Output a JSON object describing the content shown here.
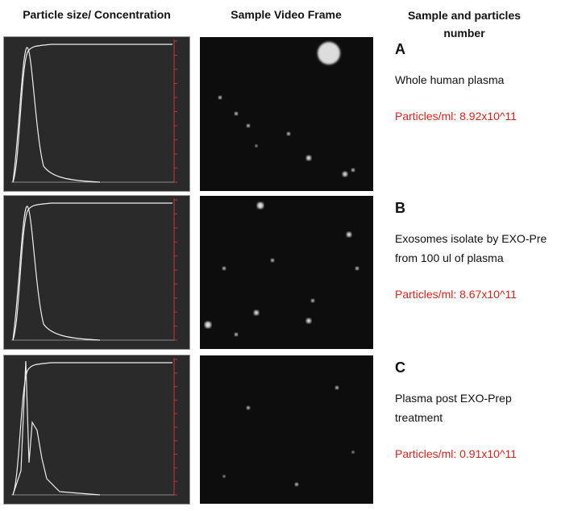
{
  "header": {
    "col1": "Particle size/ Concentration",
    "col2": "Sample Video Frame",
    "col3": [
      "Sample and particles",
      "number"
    ]
  },
  "rows": [
    {
      "letter": "A",
      "description": [
        "Whole human plasma"
      ],
      "count": "Particles/ml: 8.92x10^11"
    },
    {
      "letter": "B",
      "description": [
        "Exosomes isolate  by EXO-Pre",
        "from 100 ul of plasma"
      ],
      "count": "Particles/ml: 8.67x10^11"
    },
    {
      "letter": "C",
      "description": [
        "Plasma post EXO-Prep",
        "treatment"
      ],
      "count": "Particles/ml: 0.91x10^11"
    }
  ]
}
